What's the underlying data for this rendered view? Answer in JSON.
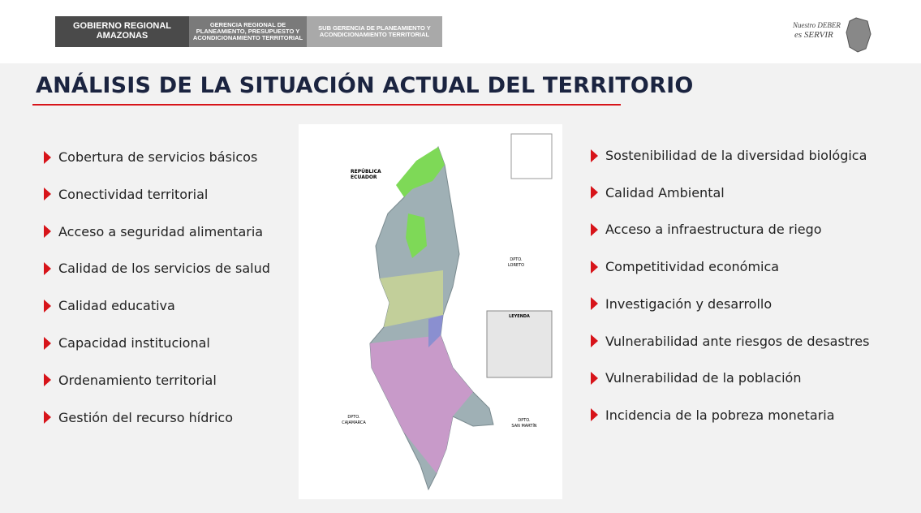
{
  "header": {
    "boxes": [
      {
        "lines": [
          "GOBIERNO REGIONAL",
          "AMAZONAS"
        ]
      },
      {
        "lines": [
          "GERENCIA REGIONAL DE",
          "PLANEAMIENTO, PRESUPUESTO Y",
          "ACONDICIONAMIENTO TERRITORIAL"
        ]
      },
      {
        "lines": [
          "SUB GERENCIA DE PLANEAMIENTO Y",
          "ACONDICIONAMIENTO TERRITORIAL"
        ]
      }
    ],
    "logo": {
      "lines": [
        "Nuestro DEBER",
        "es SERVIR"
      ]
    }
  },
  "title": "ANÁLISIS DE LA SITUACIÓN ACTUAL DEL TERRITORIO",
  "left_items": [
    "Cobertura de servicios básicos",
    "Conectividad territorial",
    "Acceso a seguridad alimentaria",
    "Calidad de los servicios de salud",
    "Calidad educativa",
    "Capacidad institucional",
    "Ordenamiento territorial",
    "Gestión del recurso hídrico"
  ],
  "right_items": [
    "Sostenibilidad de la diversidad biológica",
    "Calidad Ambiental",
    "Acceso a infraestructura de riego",
    "Competitividad económica",
    "Investigación y desarrollo",
    "Vulnerabilidad ante riesgos de desastres",
    "Vulnerabilidad de la población",
    "Incidencia de la pobreza monetaria"
  ],
  "map": {
    "labels": {
      "ecuador": [
        "REPÚBLICA",
        "ECUADOR"
      ],
      "loreto": [
        "DPTO.",
        "LORETO"
      ],
      "cajamarca": [
        "DPTO.",
        "CAJAMARCA"
      ],
      "san_martin": [
        "DPTO.",
        "SAN MARTÍN"
      ],
      "legend": "LEYENDA"
    }
  }
}
